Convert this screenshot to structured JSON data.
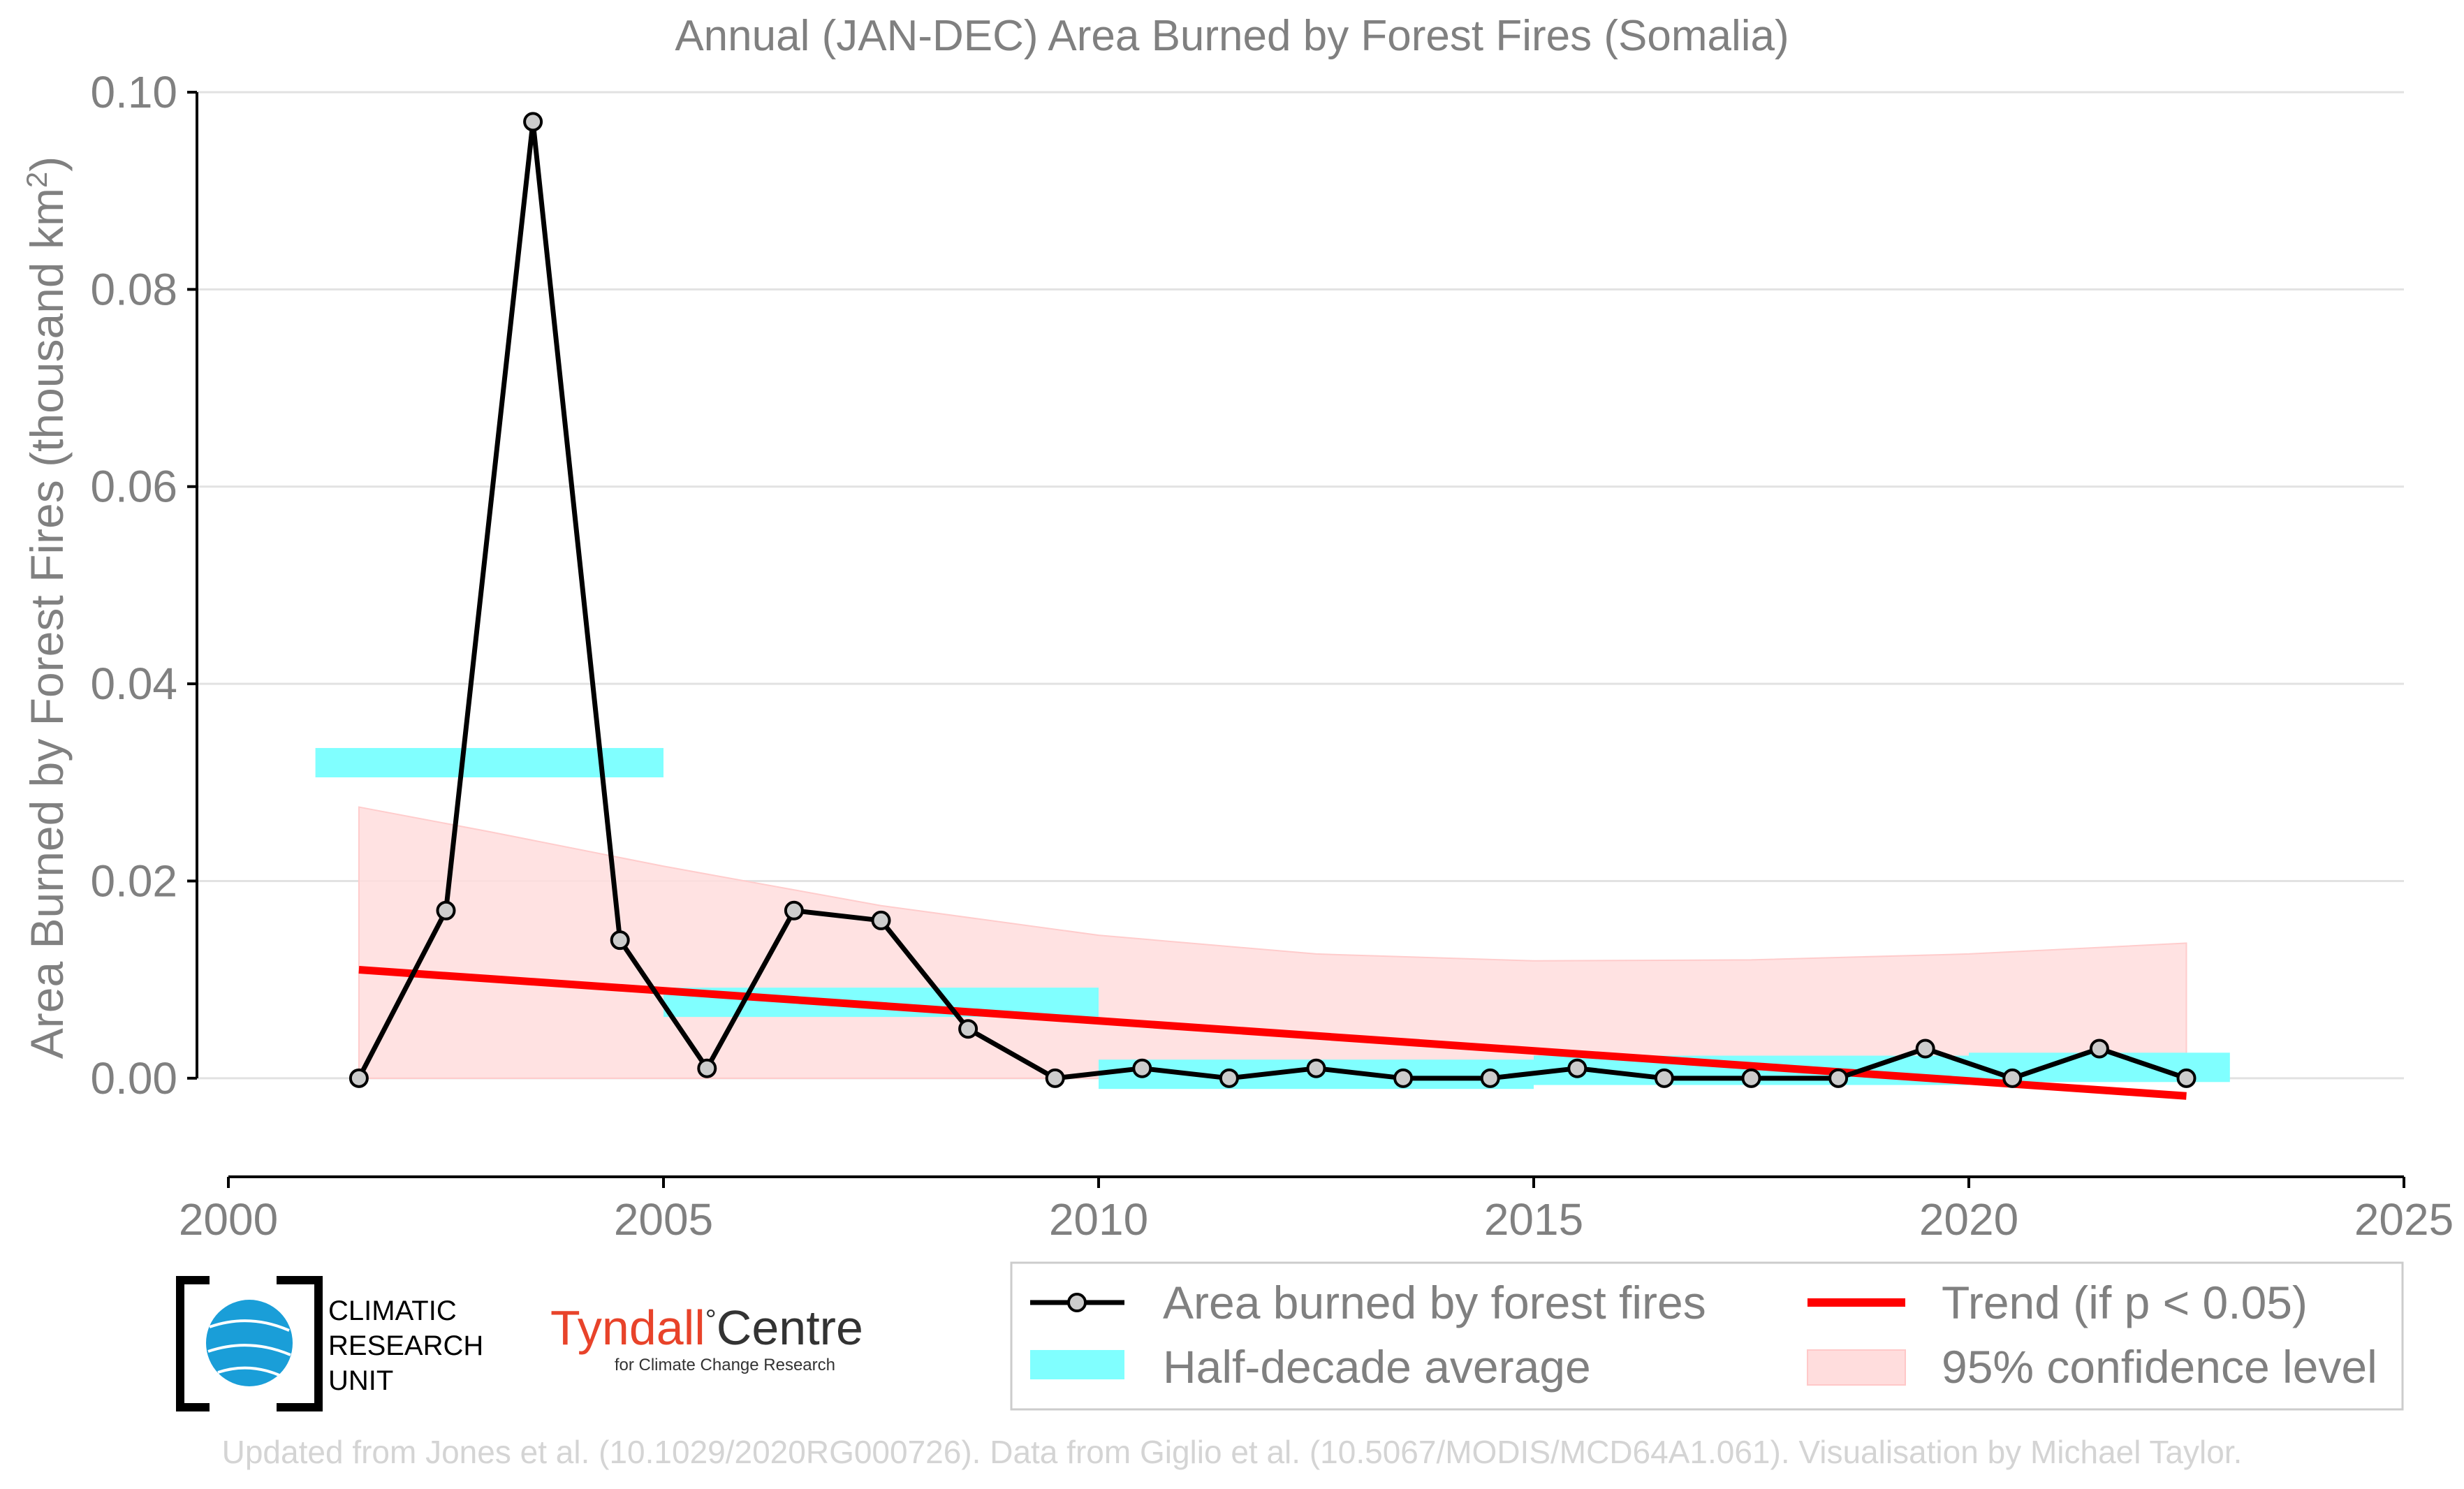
{
  "chart_data": {
    "type": "line",
    "title": "Annual (JAN-DEC) Area Burned by Forest Fires (Somalia)",
    "xlabel": "",
    "ylabel": "Area Burned by Forest Fires (thousand km",
    "ylabel_sup": "2",
    "ylabel_tail": ")",
    "xlim": [
      2000,
      2025
    ],
    "ylim": [
      -0.01,
      0.1
    ],
    "x_ticks": [
      2000,
      2005,
      2010,
      2015,
      2020,
      2025
    ],
    "y_ticks": [
      0.0,
      0.02,
      0.04,
      0.06,
      0.08,
      0.1
    ],
    "x_tick_labels": [
      "2000",
      "2005",
      "2010",
      "2015",
      "2020",
      "2025"
    ],
    "y_tick_labels": [
      "0.00",
      "0.02",
      "0.04",
      "0.06",
      "0.08",
      "0.10"
    ],
    "grid": "horizontal",
    "legend_position": "bottom-right",
    "series": [
      {
        "name": "Area burned by forest fires",
        "color": "#000000",
        "marker_fill": "#cccccc",
        "x": [
          2001.5,
          2002.5,
          2003.5,
          2004.5,
          2005.5,
          2006.5,
          2007.5,
          2008.5,
          2009.5,
          2010.5,
          2011.5,
          2012.5,
          2013.5,
          2014.5,
          2015.5,
          2016.5,
          2017.5,
          2018.5,
          2019.5,
          2020.5,
          2021.5,
          2022.5
        ],
        "y": [
          0.0,
          0.017,
          0.097,
          0.014,
          0.001,
          0.017,
          0.016,
          0.005,
          0.0,
          0.001,
          0.0,
          0.001,
          0.0,
          0.0,
          0.001,
          0.0,
          0.0,
          0.0,
          0.003,
          0.0,
          0.003,
          0.0
        ]
      },
      {
        "name": "Half-decade average",
        "color": "#80ffff",
        "segments": [
          {
            "x0": 2001.0,
            "x1": 2005.0,
            "y": 0.032
          },
          {
            "x0": 2005.0,
            "x1": 2010.0,
            "y": 0.0077
          },
          {
            "x0": 2010.0,
            "x1": 2015.0,
            "y": 0.0004
          },
          {
            "x0": 2015.0,
            "x1": 2020.0,
            "y": 0.0008
          },
          {
            "x0": 2020.0,
            "x1": 2023.0,
            "y": 0.0011
          }
        ]
      },
      {
        "name": "Trend (if p < 0.05)",
        "color": "#ff0000",
        "x": [
          2001.5,
          2022.5
        ],
        "y": [
          0.011,
          -0.0018
        ]
      },
      {
        "name": "95% confidence level",
        "color": "#ffdddd",
        "x": [
          2001.5,
          2003.0,
          2005.0,
          2007.5,
          2010.0,
          2012.5,
          2015.0,
          2017.5,
          2020.0,
          2022.5
        ],
        "upper": [
          0.0275,
          0.025,
          0.0215,
          0.0175,
          0.0145,
          0.0126,
          0.0119,
          0.012,
          0.0126,
          0.0137
        ],
        "lower": [
          0.0,
          0.0,
          0.0,
          0.0,
          0.0,
          0.0,
          0.0,
          0.0,
          0.0,
          0.0
        ]
      }
    ]
  },
  "logos": {
    "cru_line1": "CLIMATIC",
    "cru_line2": "RESEARCH",
    "cru_line3": "UNIT",
    "tyndall_main": "Tyndall",
    "tyndall_degree": "°",
    "tyndall_centre": "Centre",
    "tyndall_sub": "for Climate Change Research"
  },
  "credit": "Updated from Jones et al. (10.1029/2020RG000726). Data from Giglio et al. (10.5067/MODIS/MCD64A1.061). Visualisation by Michael Taylor."
}
